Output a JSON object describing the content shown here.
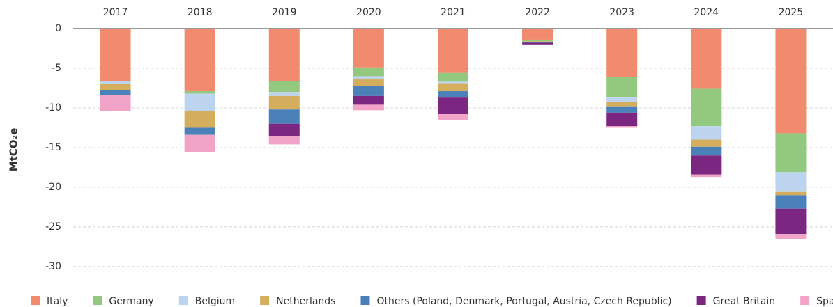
{
  "chart_data": {
    "type": "stacked_bar",
    "y_label": "MtCO₂e",
    "categories": [
      "2017",
      "2018",
      "2019",
      "2020",
      "2021",
      "2022",
      "2023",
      "2024",
      "2025"
    ],
    "series": [
      {
        "name": "Italy",
        "color": "#f28a6e",
        "values": [
          -6.6,
          -7.9,
          -6.6,
          -4.9,
          -5.6,
          -1.4,
          -6.1,
          -7.6,
          -13.2
        ]
      },
      {
        "name": "Germany",
        "color": "#93c97f",
        "values": [
          0,
          -0.3,
          -1.4,
          -1.1,
          -1.1,
          -0.2,
          -2.6,
          -4.7,
          -4.9
        ]
      },
      {
        "name": "Belgium",
        "color": "#bcd4ee",
        "values": [
          -0.4,
          -2.2,
          -0.5,
          -0.4,
          -0.2,
          0,
          -0.6,
          -1.7,
          -2.5
        ]
      },
      {
        "name": "Netherlands",
        "color": "#d4ae5c",
        "values": [
          -0.8,
          -2.1,
          -1.7,
          -0.8,
          -1.0,
          -0.1,
          -0.5,
          -0.9,
          -0.4
        ]
      },
      {
        "name": "Others (Poland, Denmark, Portugal, Austria, Czech Republic)",
        "color": "#4a81b8",
        "values": [
          -0.6,
          -0.9,
          -1.8,
          -1.3,
          -0.8,
          -0.1,
          -0.8,
          -1.1,
          -1.7
        ]
      },
      {
        "name": "Great Britain",
        "color": "#7b2680",
        "values": [
          0,
          0,
          -1.6,
          -1.1,
          -2.1,
          -0.2,
          -1.7,
          -2.4,
          -3.2
        ]
      },
      {
        "name": "Spain",
        "color": "#f2a3c8",
        "values": [
          -2.0,
          -2.2,
          -1.0,
          -0.7,
          -0.7,
          0,
          -0.2,
          -0.3,
          -0.6
        ]
      }
    ],
    "ylim": [
      -31.5,
      0
    ],
    "yticks": [
      0,
      -5,
      -10,
      -15,
      -20,
      -25,
      -30
    ],
    "grid": true,
    "legend": "bottom"
  }
}
